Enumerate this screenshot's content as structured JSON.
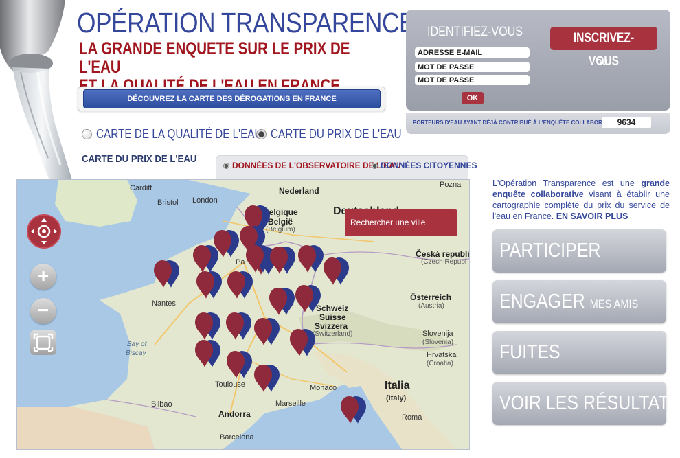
{
  "header": {
    "title": "OPÉRATION TRANSPARENCE :",
    "subtitle_line1": "LA GRANDE ENQUETE SUR LE PRIX DE L'EAU",
    "subtitle_line2": "ET LA QUALITÉ DE L'EAU EN FRANCE"
  },
  "derogation_button": "DÉCOUVREZ LA CARTE DES DÉROGATIONS EN FRANCE",
  "map_type": {
    "options": [
      {
        "label": "CARTE DE LA QUALITÉ DE L'EAU",
        "selected": false
      },
      {
        "label": "CARTE DU PRIX DE L'EAU",
        "selected": true
      }
    ]
  },
  "map_heading": "CARTE DU PRIX DE L'EAU",
  "data_source": {
    "observatoire": {
      "label": "DONNÉES DE L'OBSERVATOIRE DE L'EAU",
      "color": "#a1161e"
    },
    "citoyennes": {
      "label": "DONNÉES CITOYENNES",
      "color": "#34479a"
    }
  },
  "map": {
    "search_placeholder": "Rechercher une ville",
    "labels": {
      "nederland": "Nederland",
      "belgique": "Belgique",
      "belgie": "België",
      "belgium": "(Belgium)",
      "london": "London",
      "bristol": "Bristol",
      "cardiff": "Cardiff",
      "deutschland": "Deutschland",
      "poznan": "Pozna",
      "ceska": "Česká republi",
      "czech": "(Czech Republ",
      "osterreich": "Österreich",
      "austria": "(Austria)",
      "schweiz": "Schweiz",
      "suisse": "Suisse",
      "svizzera": "Svizzera",
      "switzerland": "(Switzerland)",
      "slovenija": "Slovenija",
      "slovenia": "(Slovenia)",
      "hrvatska": "Hrvatska",
      "croatia": "(Croatia)",
      "nantes": "Nantes",
      "bay_of": "Bay of",
      "biscay": "Biscay",
      "toulouse": "Toulouse",
      "bilbao": "Bilbao",
      "andorra": "Andorra",
      "monaco": "Monaco",
      "marseille": "Marseille",
      "barcelona": "Barcelona",
      "italia": "Italia",
      "italy": "(Italy)",
      "roma": "Roma",
      "pa": "Pa"
    },
    "pin_colors": {
      "primary": "#8f2a3c",
      "secondary": "#2c3a8c"
    }
  },
  "login": {
    "title": "IDENTIFIEZ-VOUS",
    "email_placeholder": "ADRESSE E-MAIL",
    "password_placeholder": "MOT DE PASSE",
    "password2_placeholder": "MOT DE PASSE",
    "ok_label": "OK",
    "register_label": "INSCRIVEZ-VOUS",
    "or_label": "ou"
  },
  "counter": {
    "label": "PORTEURS D'EAU AYANT DÉJÀ CONTRIBUÉ À L'ENQUÊTE COLLABORATIVE",
    "value": "9634"
  },
  "intro": {
    "part1": "L'Opération Transparence est une ",
    "bold1": "grande enquête collaborative",
    "part2": " visant à établir une cartographie complète du prix du service de l'eau en France. ",
    "learn_more": "EN SAVOIR PLUS"
  },
  "actions": {
    "participer": "PARTICIPER",
    "engager": "ENGAGER",
    "engager_small": "MES AMIS",
    "fuites": "FUITES",
    "resultats": "VOIR LES RÉSULTATS"
  }
}
